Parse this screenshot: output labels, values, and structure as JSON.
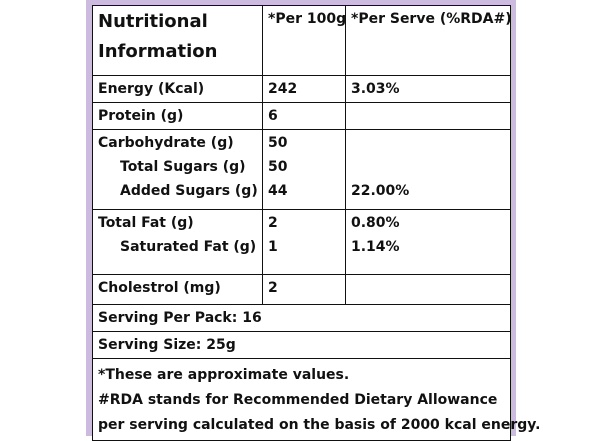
{
  "header": [
    "Nutritional Information",
    "*Per 100g",
    "*Per Serve (%RDA#)"
  ],
  "rows": [
    [
      [
        "Energy (Kcal)",
        "242",
        "3.03%"
      ]
    ],
    [
      [
        "Protein (g)",
        "6"
      ]
    ],
    [
      [
        "Carbohydrate (g)",
        "50"
      ],
      [
        "Total Sugars (g)",
        "50"
      ],
      [
        "Added Sugars (g)",
        "44",
        "22.00%"
      ]
    ],
    [
      [
        "Total Fat (g)",
        "2",
        "0.80%"
      ],
      [
        "Saturated Fat (g)",
        "1",
        "1.14%"
      ]
    ],
    [
      [
        "Cholestrol (mg)",
        "2"
      ]
    ]
  ],
  "footer": [
    "Serving Per Pack: 16",
    "Serving Size: 25g"
  ],
  "notes": [
    "*These are approximate values.",
    "#RDA stands for Recommended Dietary Allowance",
    "per serving calculated on the basis of 2000 kcal energy."
  ]
}
